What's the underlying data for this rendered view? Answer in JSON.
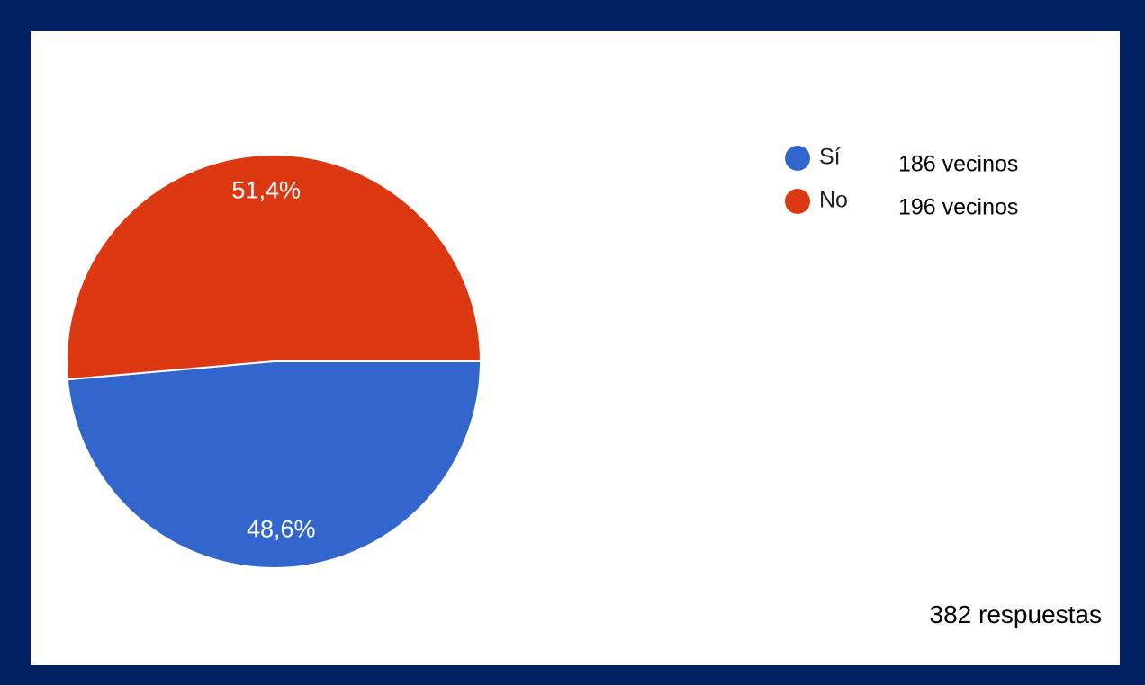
{
  "chart_data": {
    "type": "pie",
    "slices": [
      {
        "label": "Sí",
        "value": 48.6,
        "percent_label": "48,6%",
        "count_label": "186 vecinos",
        "color": "#3366cc"
      },
      {
        "label": "No",
        "value": 51.4,
        "percent_label": "51,4%",
        "count_label": "196 vecinos",
        "color": "#dc3912"
      }
    ],
    "total_label": "382 respuestas",
    "legend_position": "top-right"
  },
  "colors": {
    "frame": "#012060",
    "background": "#ffffff"
  }
}
